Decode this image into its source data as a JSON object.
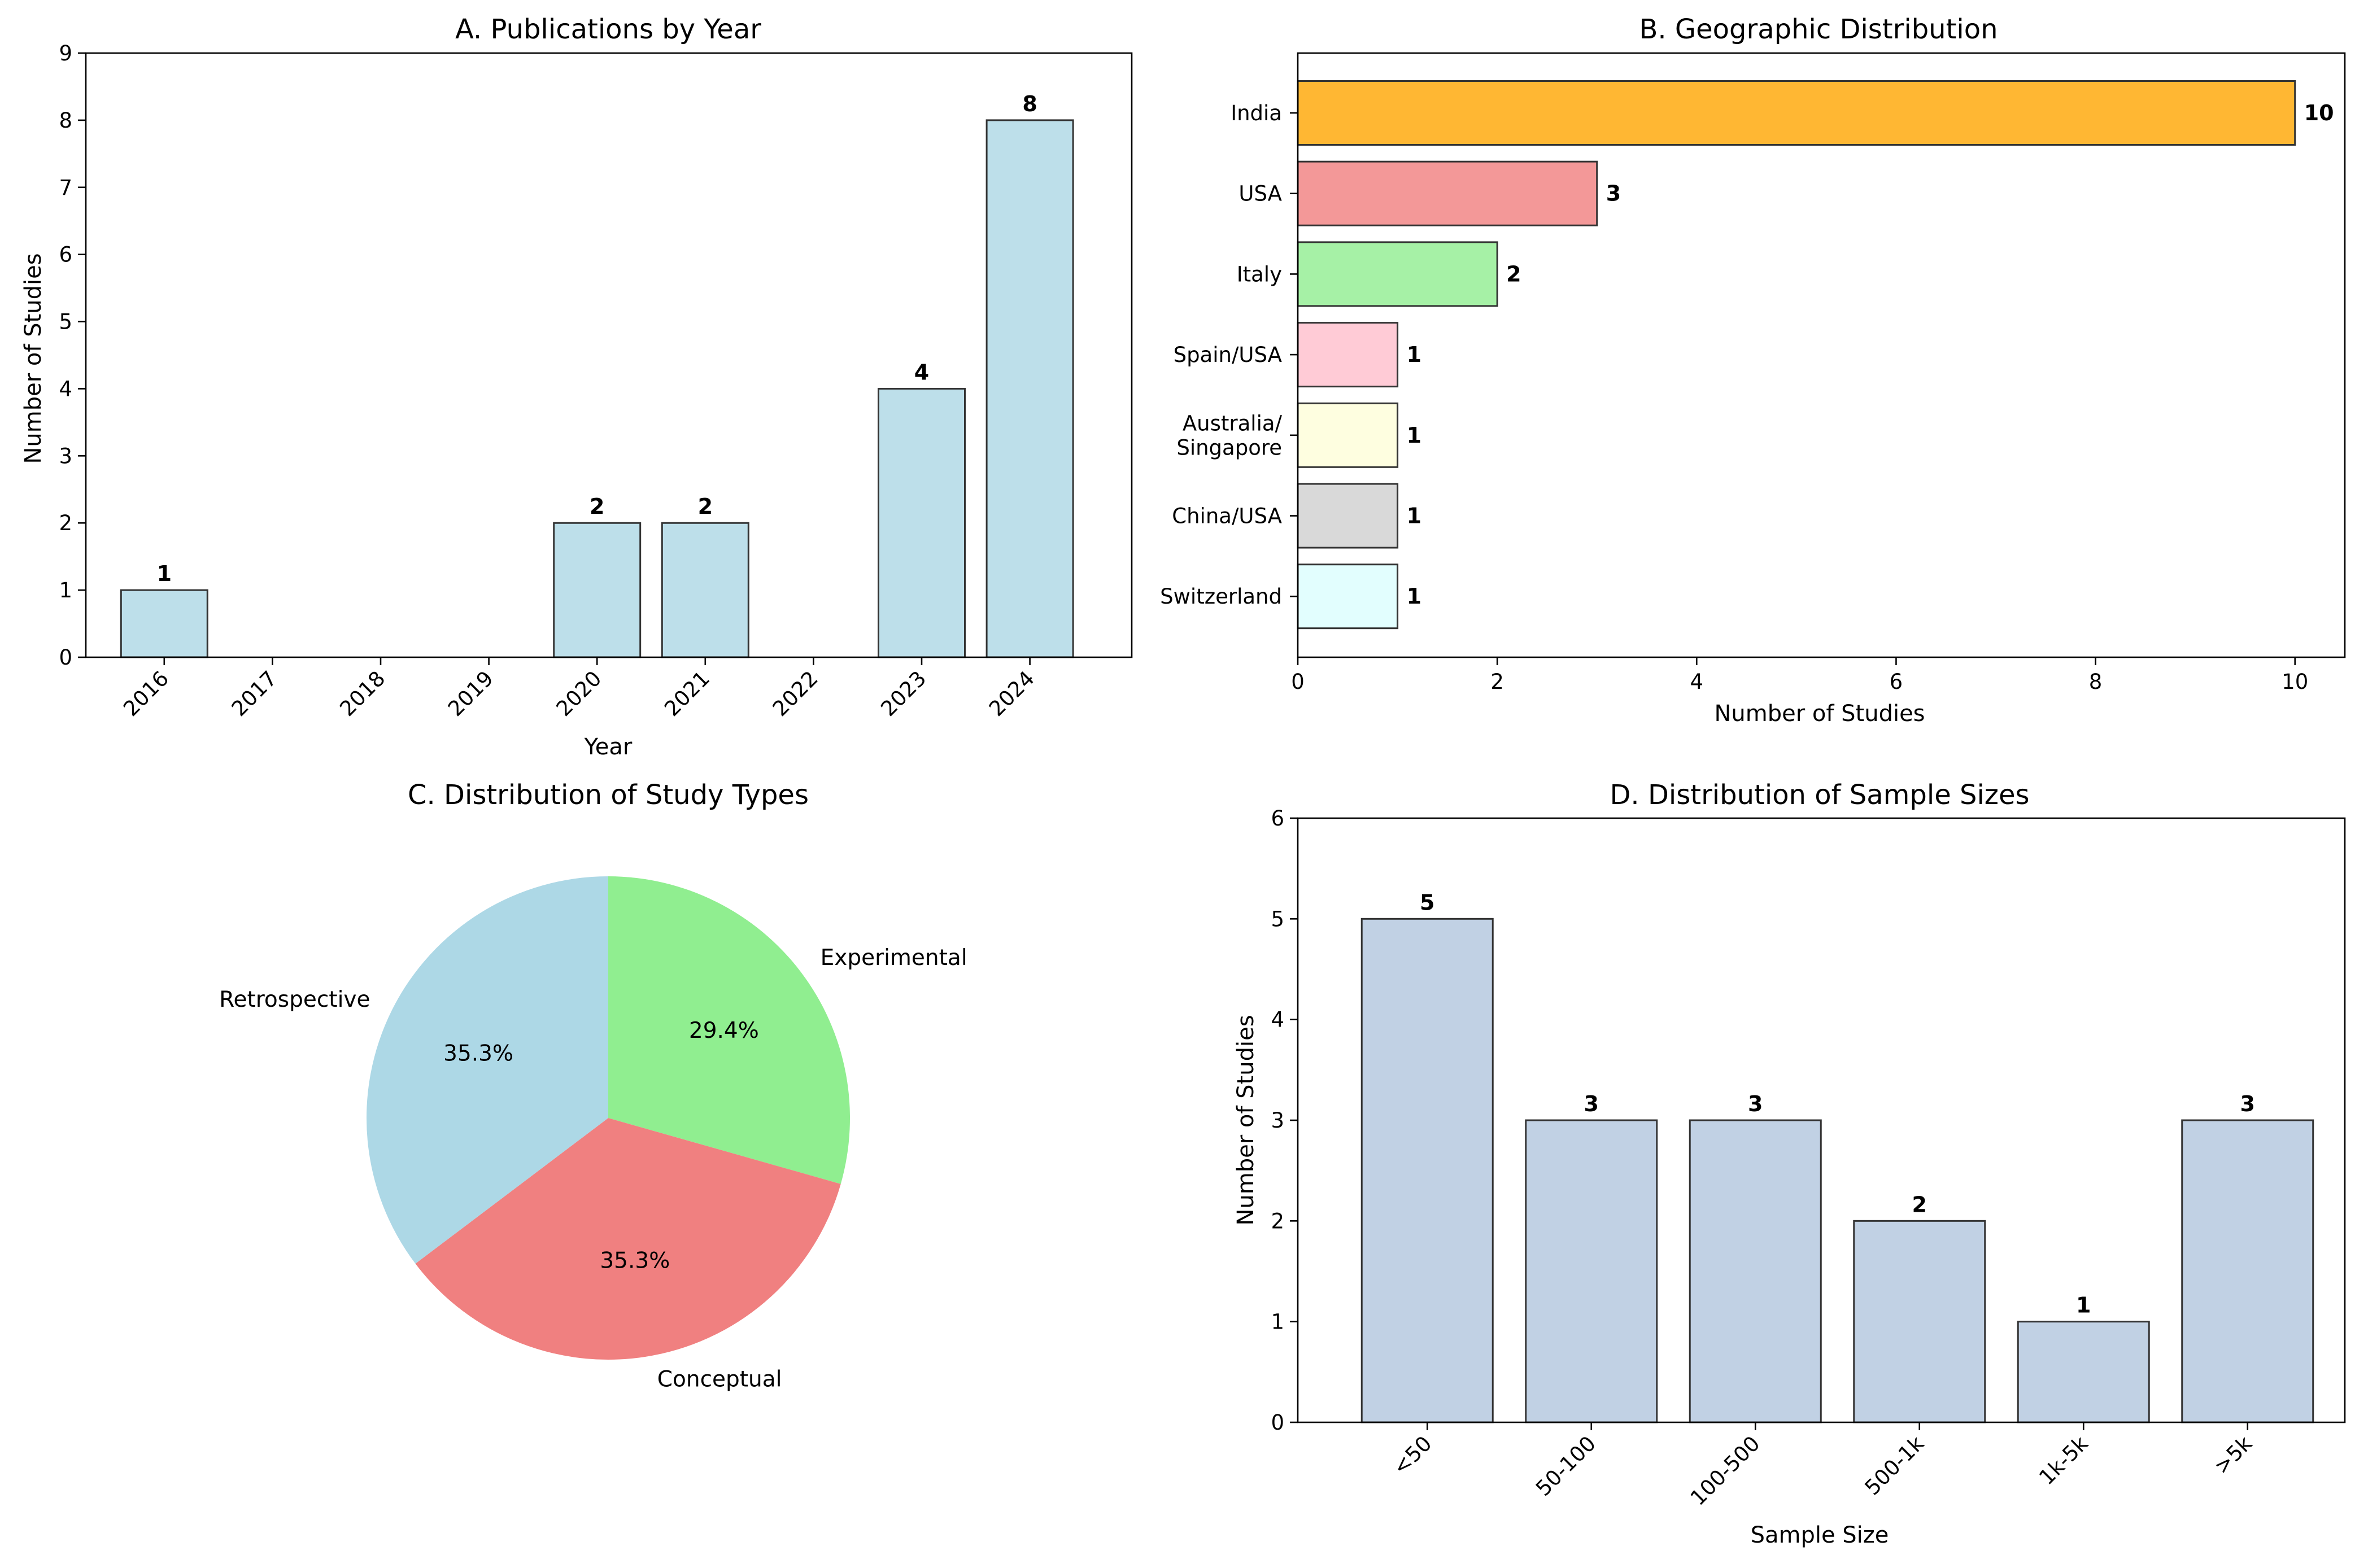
{
  "chart_data": [
    {
      "id": "A",
      "type": "bar",
      "orientation": "vertical",
      "title": "A. Publications by Year",
      "xlabel": "Year",
      "ylabel": "Number of Studies",
      "categories": [
        "2016",
        "2017",
        "2018",
        "2019",
        "2020",
        "2021",
        "2022",
        "2023",
        "2024"
      ],
      "values": [
        1,
        0,
        0,
        0,
        2,
        2,
        0,
        4,
        8
      ],
      "value_labels": [
        "1",
        "",
        "",
        "",
        "2",
        "2",
        "",
        "4",
        "8"
      ],
      "ylim": [
        0,
        9
      ],
      "yticks": [
        "0",
        "1",
        "2",
        "3",
        "4",
        "5",
        "6",
        "7",
        "8",
        "9"
      ],
      "bar_color": "#bddfea",
      "edge_color": "#333333",
      "x_tick_rotation": -45
    },
    {
      "id": "B",
      "type": "bar",
      "orientation": "horizontal",
      "title": "B. Geographic Distribution",
      "xlabel": "Number of Studies",
      "ylabel": "",
      "categories": [
        "India",
        "USA",
        "Italy",
        "Spain/USA",
        "Australia/\nSingapore",
        "China/USA",
        "Switzerland"
      ],
      "values": [
        10,
        3,
        2,
        1,
        1,
        1,
        1
      ],
      "value_labels": [
        "10",
        "3",
        "2",
        "1",
        "1",
        "1",
        "1"
      ],
      "colors": [
        "#ffb733",
        "#f39898",
        "#a6f1a6",
        "#ffcbd6",
        "#fefee0",
        "#d9d9d9",
        "#e2fefe"
      ],
      "xlim": [
        0,
        10.5
      ],
      "xticks": [
        "0",
        "2",
        "4",
        "6",
        "8",
        "10"
      ],
      "edge_color": "#333333"
    },
    {
      "id": "C",
      "type": "pie",
      "title": "C. Distribution of Study Types",
      "slices": [
        {
          "label": "Experimental",
          "value": 29.4,
          "pct_label": "29.4%",
          "color": "#90ee90"
        },
        {
          "label": "Conceptual",
          "value": 35.3,
          "pct_label": "35.3%",
          "color": "#f08080"
        },
        {
          "label": "Retrospective",
          "value": 35.3,
          "pct_label": "35.3%",
          "color": "#add8e6"
        }
      ]
    },
    {
      "id": "D",
      "type": "bar",
      "orientation": "vertical",
      "title": "D. Distribution of Sample Sizes",
      "xlabel": "Sample Size",
      "ylabel": "Number of Studies",
      "categories": [
        "<50",
        "50-100",
        "100-500",
        "500-1k",
        "1k-5k",
        ">5k"
      ],
      "values": [
        5,
        3,
        3,
        2,
        1,
        3
      ],
      "value_labels": [
        "5",
        "3",
        "3",
        "2",
        "1",
        "3"
      ],
      "ylim": [
        0,
        6
      ],
      "yticks": [
        "0",
        "1",
        "2",
        "3",
        "4",
        "5",
        "6"
      ],
      "bar_color": "#c1d1e4",
      "edge_color": "#333333",
      "x_tick_rotation": -45
    }
  ]
}
